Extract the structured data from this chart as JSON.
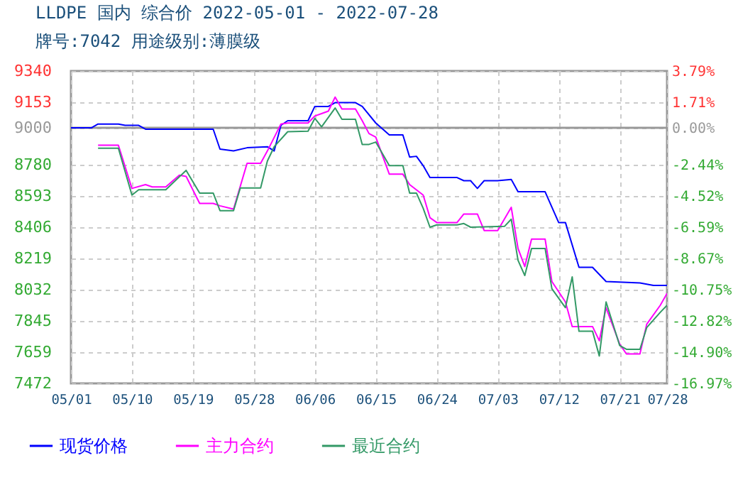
{
  "chart_data": {
    "type": "line",
    "title": "LLDPE 国内 综合价 2022-05-01 - 2022-07-28",
    "subtitle": "牌号:7042 用途级别:薄膜级",
    "xlim": [
      "2022-05-01",
      "2022-07-28"
    ],
    "xticks": [
      {
        "value": "2022-05-01",
        "label": "05/01"
      },
      {
        "value": "2022-05-10",
        "label": "05/10"
      },
      {
        "value": "2022-05-19",
        "label": "05/19"
      },
      {
        "value": "2022-05-28",
        "label": "05/28"
      },
      {
        "value": "2022-06-06",
        "label": "06/06"
      },
      {
        "value": "2022-06-15",
        "label": "06/15"
      },
      {
        "value": "2022-06-24",
        "label": "06/24"
      },
      {
        "value": "2022-07-03",
        "label": "07/03"
      },
      {
        "value": "2022-07-12",
        "label": "07/12"
      },
      {
        "value": "2022-07-21",
        "label": "07/21"
      },
      {
        "value": "2022-07-28",
        "label": "07/28"
      }
    ],
    "ylim": [
      7472,
      9340
    ],
    "yticks": [
      9340,
      9153,
      9000,
      8780,
      8593,
      8406,
      8219,
      8032,
      7845,
      7659,
      7472
    ],
    "y2lim": [
      -16.97,
      3.79
    ],
    "y2ticks": [
      {
        "value": 3.79,
        "label": "3.79%"
      },
      {
        "value": 1.71,
        "label": "1.71%"
      },
      {
        "value": 0,
        "label": "0.00%"
      },
      {
        "value": -2.44,
        "label": "-2.44%"
      },
      {
        "value": -4.52,
        "label": "-4.52%"
      },
      {
        "value": -6.59,
        "label": "-6.59%"
      },
      {
        "value": -8.67,
        "label": "-8.67%"
      },
      {
        "value": -10.75,
        "label": "-10.75%"
      },
      {
        "value": -12.82,
        "label": "-12.82%"
      },
      {
        "value": -14.9,
        "label": "-14.90%"
      },
      {
        "value": -16.97,
        "label": "-16.97%"
      }
    ],
    "grid": true,
    "legend": "bottom",
    "line_style": "solid",
    "ref_lines": [
      {
        "axis": "y",
        "value": 9000,
        "color": "#999999"
      }
    ],
    "series": [
      {
        "name": "现货价格",
        "color": "#0000ff",
        "x": [
          "2022-05-01",
          "2022-05-04",
          "2022-05-05",
          "2022-05-08",
          "2022-05-09",
          "2022-05-11",
          "2022-05-12",
          "2022-05-22",
          "2022-05-23",
          "2022-05-25",
          "2022-05-27",
          "2022-05-30",
          "2022-05-31",
          "2022-06-01",
          "2022-06-02",
          "2022-06-05",
          "2022-06-06",
          "2022-06-08",
          "2022-06-09",
          "2022-06-12",
          "2022-06-13",
          "2022-06-15",
          "2022-06-17",
          "2022-06-19",
          "2022-06-20",
          "2022-06-21",
          "2022-06-22",
          "2022-06-23",
          "2022-06-27",
          "2022-06-28",
          "2022-06-29",
          "2022-06-30",
          "2022-07-01",
          "2022-07-03",
          "2022-07-05",
          "2022-07-06",
          "2022-07-10",
          "2022-07-12",
          "2022-07-13",
          "2022-07-15",
          "2022-07-17",
          "2022-07-19",
          "2022-07-24",
          "2022-07-26",
          "2022-07-28"
        ],
        "values": [
          9000,
          9000,
          9023,
          9023,
          9015,
          9015,
          8992,
          8992,
          8873,
          8862,
          8881,
          8887,
          8862,
          9015,
          9043,
          9043,
          9128,
          9128,
          9151,
          9151,
          9128,
          9029,
          8958,
          8958,
          8825,
          8830,
          8774,
          8703,
          8703,
          8684,
          8684,
          8638,
          8684,
          8684,
          8692,
          8618,
          8618,
          8434,
          8434,
          8166,
          8166,
          8081,
          8073,
          8058,
          8058
        ]
      },
      {
        "name": "主力合约",
        "color": "#ff00ff",
        "x": [
          "2022-05-05",
          "2022-05-08",
          "2022-05-10",
          "2022-05-12",
          "2022-05-13",
          "2022-05-15",
          "2022-05-17",
          "2022-05-18",
          "2022-05-20",
          "2022-05-22",
          "2022-05-23",
          "2022-05-25",
          "2022-05-27",
          "2022-05-29",
          "2022-05-30",
          "2022-06-01",
          "2022-06-02",
          "2022-06-05",
          "2022-06-06",
          "2022-06-07",
          "2022-06-08",
          "2022-06-09",
          "2022-06-10",
          "2022-06-12",
          "2022-06-13",
          "2022-06-14",
          "2022-06-15",
          "2022-06-17",
          "2022-06-19",
          "2022-06-20",
          "2022-06-22",
          "2022-06-23",
          "2022-06-24",
          "2022-06-27",
          "2022-06-28",
          "2022-06-30",
          "2022-07-01",
          "2022-07-03",
          "2022-07-05",
          "2022-07-06",
          "2022-07-07",
          "2022-07-08",
          "2022-07-10",
          "2022-07-11",
          "2022-07-13",
          "2022-07-14",
          "2022-07-17",
          "2022-07-18",
          "2022-07-19",
          "2022-07-21",
          "2022-07-22",
          "2022-07-24",
          "2022-07-25",
          "2022-07-27",
          "2022-07-28"
        ],
        "values": [
          8896,
          8896,
          8638,
          8661,
          8647,
          8647,
          8717,
          8710,
          8548,
          8548,
          8534,
          8514,
          8788,
          8788,
          8862,
          9023,
          9029,
          9029,
          9071,
          9085,
          9100,
          9184,
          9113,
          9113,
          9043,
          8966,
          8945,
          8723,
          8723,
          8661,
          8598,
          8463,
          8434,
          8434,
          8485,
          8485,
          8386,
          8386,
          8525,
          8279,
          8171,
          8335,
          8335,
          8081,
          7959,
          7812,
          7812,
          7727,
          7925,
          7708,
          7648,
          7648,
          7826,
          7939,
          8010
        ]
      },
      {
        "name": "最近合约",
        "color": "#339966",
        "x": [
          "2022-05-05",
          "2022-05-08",
          "2022-05-10",
          "2022-05-11",
          "2022-05-15",
          "2022-05-18",
          "2022-05-20",
          "2022-05-22",
          "2022-05-23",
          "2022-05-25",
          "2022-05-26",
          "2022-05-29",
          "2022-05-30",
          "2022-05-31",
          "2022-06-02",
          "2022-06-05",
          "2022-06-06",
          "2022-06-07",
          "2022-06-09",
          "2022-06-10",
          "2022-06-12",
          "2022-06-13",
          "2022-06-14",
          "2022-06-15",
          "2022-06-17",
          "2022-06-19",
          "2022-06-20",
          "2022-06-21",
          "2022-06-22",
          "2022-06-23",
          "2022-06-24",
          "2022-06-27",
          "2022-06-28",
          "2022-06-29",
          "2022-07-04",
          "2022-07-05",
          "2022-07-06",
          "2022-07-07",
          "2022-07-08",
          "2022-07-10",
          "2022-07-11",
          "2022-07-13",
          "2022-07-14",
          "2022-07-15",
          "2022-07-17",
          "2022-07-18",
          "2022-07-19",
          "2022-07-21",
          "2022-07-22",
          "2022-07-24",
          "2022-07-25",
          "2022-07-27",
          "2022-07-28"
        ],
        "values": [
          8878,
          8878,
          8598,
          8630,
          8630,
          8746,
          8610,
          8610,
          8505,
          8505,
          8641,
          8641,
          8802,
          8887,
          8977,
          8980,
          9057,
          9006,
          9119,
          9051,
          9051,
          8901,
          8901,
          8915,
          8774,
          8774,
          8610,
          8610,
          8519,
          8406,
          8420,
          8420,
          8428,
          8406,
          8411,
          8454,
          8208,
          8117,
          8279,
          8279,
          8038,
          7925,
          8109,
          7784,
          7784,
          7636,
          7959,
          7699,
          7676,
          7676,
          7806,
          7897,
          7939
        ]
      }
    ]
  }
}
